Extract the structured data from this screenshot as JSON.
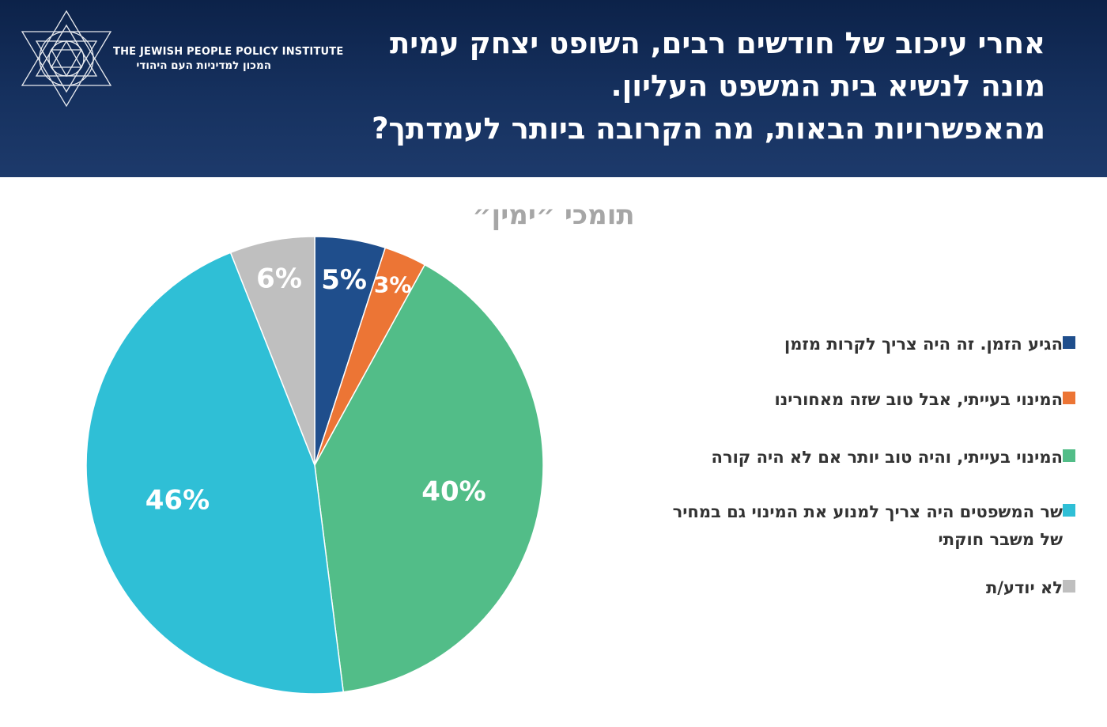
{
  "header": {
    "org_name_en": "The Jewish People Policy Institute",
    "org_name_he": "המכון למדיניות העם היהודי",
    "question_lines": [
      "אחרי עיכוב של חודשים רבים, השופט יצחק עמית",
      "מונה לנשיא בית המשפט העליון.",
      "מהאפשרויות הבאות, מה הקרובה ביותר לעמדתך?"
    ]
  },
  "chart_data": {
    "type": "pie",
    "title": "תומכי ״ימין״",
    "slices": [
      {
        "label": "הגיע הזמן. זה היה צריך לקרות מזמן",
        "value": 5,
        "display": "5%",
        "color": "#1f4e8c"
      },
      {
        "label": "המינוי בעייתי, אבל טוב שזה מאחורינו",
        "value": 3,
        "display": "3%",
        "color": "#ec7535"
      },
      {
        "label": "המינוי בעייתי, והיה טוב יותר אם לא היה קורה",
        "value": 40,
        "display": "40%",
        "color": "#52bd88"
      },
      {
        "label": "שר המשפטים היה צריך למנוע את המינוי גם במחיר של משבר חוקתי",
        "value": 46,
        "display": "46%",
        "color": "#2fbfd6"
      },
      {
        "label": "לא יודע/ת",
        "value": 6,
        "display": "6%",
        "color": "#bfbfbf"
      }
    ],
    "legend_lines": [
      [
        "הגיע הזמן. זה היה צריך לקרות מזמן"
      ],
      [
        "המינוי בעייתי, אבל טוב שזה מאחורינו"
      ],
      [
        "המינוי בעייתי, והיה טוב יותר אם לא היה קורה"
      ],
      [
        "שר המשפטים היה צריך למנוע את המינוי גם במחיר",
        "של משבר חוקתי"
      ],
      [
        "לא יודע/ת"
      ]
    ],
    "legend_placement": "right",
    "label_color": "#ffffff"
  }
}
